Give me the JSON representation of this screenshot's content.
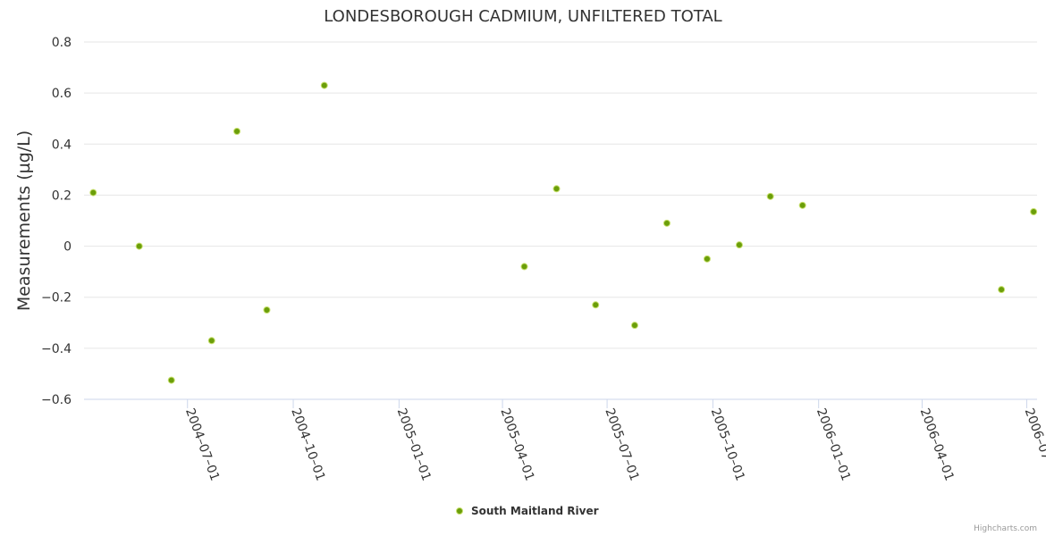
{
  "chart_data": {
    "type": "scatter",
    "title": "LONDESBOROUGH CADMIUM, UNFILTERED TOTAL",
    "ylabel": "Measurements (µg/L)",
    "xlabel": "",
    "ylim": [
      -0.6,
      0.8
    ],
    "yticks": [
      "−0.6",
      "−0.4",
      "−0.2",
      "0",
      "0.2",
      "0.4",
      "0.6",
      "0.8"
    ],
    "ytick_values": [
      -0.6,
      -0.4,
      -0.2,
      0,
      0.2,
      0.4,
      0.6,
      0.8
    ],
    "xlim": [
      "2004-04-02",
      "2006-07-10"
    ],
    "xticks": [
      "2004–07–01",
      "2004–10–01",
      "2005–01–01",
      "2005–04–01",
      "2005–07–01",
      "2005–10–01",
      "2006–01–01",
      "2006–04–01",
      "2006–07–01"
    ],
    "xtick_dates": [
      "2004-07-01",
      "2004-10-01",
      "2005-01-01",
      "2005-04-01",
      "2005-07-01",
      "2005-10-01",
      "2006-01-01",
      "2006-04-01",
      "2006-07-01"
    ],
    "grid": true,
    "legend_position": "bottom-center",
    "series": [
      {
        "name": "South Maitland River",
        "color": "#7cb5ec",
        "marker_color": "#6b9e0a",
        "points": [
          {
            "x": "2004-04-10",
            "y": 0.21
          },
          {
            "x": "2004-05-20",
            "y": 0.0
          },
          {
            "x": "2004-06-17",
            "y": -0.525
          },
          {
            "x": "2004-07-22",
            "y": -0.37
          },
          {
            "x": "2004-08-13",
            "y": 0.45
          },
          {
            "x": "2004-09-08",
            "y": -0.25
          },
          {
            "x": "2004-10-28",
            "y": 0.63
          },
          {
            "x": "2005-04-20",
            "y": -0.08
          },
          {
            "x": "2005-05-18",
            "y": 0.225
          },
          {
            "x": "2005-06-21",
            "y": -0.23
          },
          {
            "x": "2005-07-25",
            "y": -0.31
          },
          {
            "x": "2005-08-22",
            "y": 0.09
          },
          {
            "x": "2005-09-26",
            "y": -0.05
          },
          {
            "x": "2005-10-24",
            "y": 0.005
          },
          {
            "x": "2005-11-20",
            "y": 0.195
          },
          {
            "x": "2005-12-18",
            "y": 0.16
          },
          {
            "x": "2006-06-09",
            "y": -0.17
          },
          {
            "x": "2006-07-07",
            "y": 0.135
          }
        ]
      }
    ]
  },
  "credits": "Highcharts.com"
}
